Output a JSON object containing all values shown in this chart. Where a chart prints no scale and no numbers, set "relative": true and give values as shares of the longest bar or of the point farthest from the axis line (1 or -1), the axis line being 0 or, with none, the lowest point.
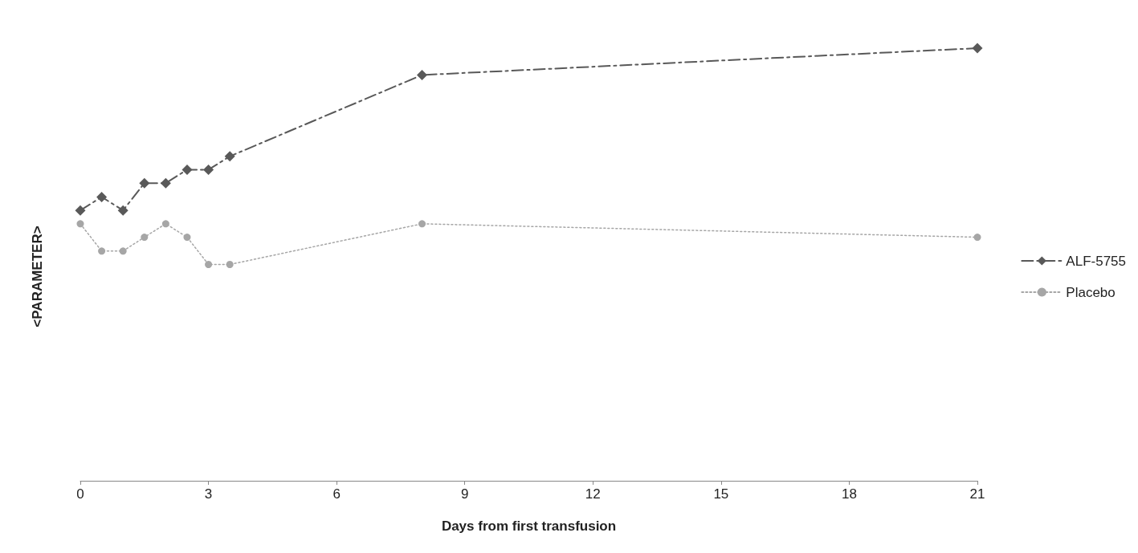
{
  "chart_data": {
    "type": "line",
    "xlabel": "Days from first transfusion",
    "ylabel": "<PARAMETER>",
    "relative": true,
    "x": [
      0,
      0.5,
      1,
      1.5,
      2,
      2.5,
      3,
      3.5,
      8,
      21
    ],
    "xlim": [
      0,
      21
    ],
    "xticks": [
      0,
      3,
      6,
      9,
      12,
      15,
      18,
      21
    ],
    "grid": false,
    "legend": "right",
    "series": [
      {
        "name": "ALF-5755",
        "color": "#595959",
        "marker": "diamond",
        "line_style": "dashdot",
        "values": [
          0.625,
          0.656,
          0.625,
          0.688,
          0.688,
          0.719,
          0.719,
          0.75,
          0.938,
          1
        ]
      },
      {
        "name": "Placebo",
        "color": "#a6a6a6",
        "marker": "circle",
        "line_style": "dotted",
        "values": [
          0.594,
          0.531,
          0.531,
          0.563,
          0.594,
          0.563,
          0.5,
          0.5,
          0.594,
          0.563
        ]
      }
    ]
  }
}
